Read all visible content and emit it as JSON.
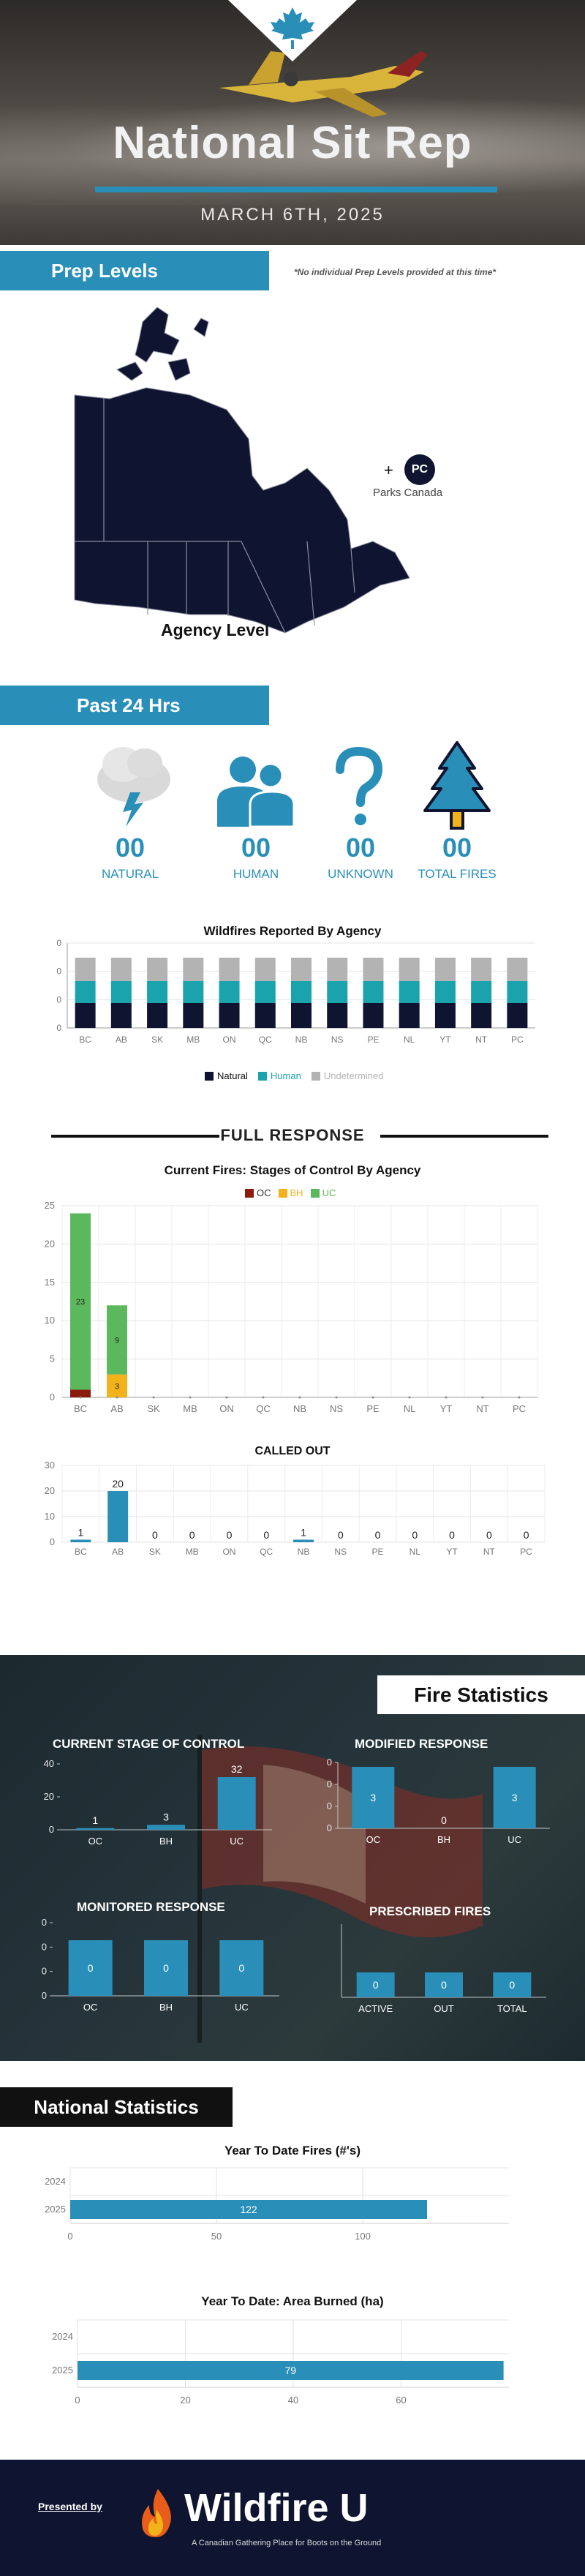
{
  "hero": {
    "title": "National Sit Rep",
    "date": "MARCH 6TH, 2025"
  },
  "prep": {
    "tab": "Prep Levels",
    "note": "*No individual Prep Levels provided at this time*",
    "pc_badge": "PC",
    "pc_plus": "+",
    "pc_label": "Parks Canada",
    "map_label": "Agency Level"
  },
  "past24": {
    "tab": "Past 24 Hrs",
    "stats": [
      {
        "icon": "storm-cloud-icon",
        "value": "00",
        "label": "NATURAL"
      },
      {
        "icon": "people-icon",
        "value": "00",
        "label": "HUMAN"
      },
      {
        "icon": "question-mark-icon",
        "value": "00",
        "label": "UNKNOWN"
      },
      {
        "icon": "tree-icon",
        "value": "00",
        "label": "TOTAL FIRES"
      }
    ]
  },
  "colors": {
    "accent": "#2a8fb8",
    "natural": "#0f1530",
    "human": "#1aa3ad",
    "undetermined": "#b3b3b3",
    "oc": "#8b1a0f",
    "bh": "#f2b21b",
    "uc": "#5cb85c"
  },
  "full_response": {
    "heading": "FULL RESPONSE"
  },
  "fire_stats": {
    "tab": "Fire Statistics"
  },
  "national_stats": {
    "tab": "National Statistics"
  },
  "footer": {
    "presented_by": "Presented by",
    "brand": "Wildfire U",
    "tagline": "A Canadian Gathering Place for Boots on the Ground"
  },
  "chart_data": [
    {
      "id": "reported",
      "type": "bar",
      "title": "Wildfires Reported By Agency",
      "categories": [
        "BC",
        "AB",
        "SK",
        "MB",
        "ON",
        "QC",
        "NB",
        "NS",
        "PE",
        "NL",
        "YT",
        "NT",
        "PC"
      ],
      "series": [
        {
          "name": "Natural",
          "values": [
            0,
            0,
            0,
            0,
            0,
            0,
            0,
            0,
            0,
            0,
            0,
            0,
            0
          ]
        },
        {
          "name": "Human",
          "values": [
            0,
            0,
            0,
            0,
            0,
            0,
            0,
            0,
            0,
            0,
            0,
            0,
            0
          ]
        },
        {
          "name": "Undetermined",
          "values": [
            0,
            0,
            0,
            0,
            0,
            0,
            0,
            0,
            0,
            0,
            0,
            0,
            0
          ]
        }
      ],
      "y_ticks": [
        "0",
        "0",
        "0",
        "0"
      ],
      "legend": "bottom"
    },
    {
      "id": "stages",
      "type": "bar",
      "title": "Current Fires: Stages of Control By Agency",
      "categories": [
        "BC",
        "AB",
        "SK",
        "MB",
        "ON",
        "QC",
        "NB",
        "NS",
        "PE",
        "NL",
        "YT",
        "NT",
        "PC"
      ],
      "series": [
        {
          "name": "OC",
          "values": [
            1,
            0,
            0,
            0,
            0,
            0,
            0,
            0,
            0,
            0,
            0,
            0,
            0
          ]
        },
        {
          "name": "BH",
          "values": [
            0,
            3,
            0,
            0,
            0,
            0,
            0,
            0,
            0,
            0,
            0,
            0,
            0
          ]
        },
        {
          "name": "UC",
          "values": [
            23,
            9,
            0,
            0,
            0,
            0,
            0,
            0,
            0,
            0,
            0,
            0,
            0
          ]
        }
      ],
      "segment_labels": [
        {
          "cat": "BC",
          "series": "UC",
          "text": "23"
        },
        {
          "cat": "AB",
          "series": "UC",
          "text": "9"
        },
        {
          "cat": "AB",
          "series": "BH",
          "text": "3"
        }
      ],
      "ylim": [
        0,
        25
      ],
      "y_ticks": [
        0,
        5,
        10,
        15,
        20,
        25
      ],
      "legend": "top"
    },
    {
      "id": "calledout",
      "type": "bar",
      "title": "CALLED OUT",
      "categories": [
        "BC",
        "AB",
        "SK",
        "MB",
        "ON",
        "QC",
        "NB",
        "NS",
        "PE",
        "NL",
        "YT",
        "NT",
        "PC"
      ],
      "values": [
        1,
        20,
        0,
        0,
        0,
        0,
        1,
        0,
        0,
        0,
        0,
        0,
        0
      ],
      "ylim": [
        0,
        30
      ],
      "y_ticks": [
        0,
        10,
        20,
        30
      ]
    },
    {
      "id": "current_stage",
      "type": "bar",
      "title": "CURRENT STAGE OF CONTROL",
      "categories": [
        "OC",
        "BH",
        "UC"
      ],
      "values": [
        1,
        3,
        32
      ],
      "ylim": [
        0,
        40
      ],
      "y_ticks": [
        0,
        20,
        40
      ]
    },
    {
      "id": "modified",
      "type": "bar",
      "title": "MODIFIED RESPONSE",
      "categories": [
        "OC",
        "BH",
        "UC"
      ],
      "values": [
        3,
        0,
        3
      ],
      "y_ticks": [
        "0",
        "0",
        "0",
        "0"
      ]
    },
    {
      "id": "monitored",
      "type": "bar",
      "title": "MONITORED RESPONSE",
      "categories": [
        "OC",
        "BH",
        "UC"
      ],
      "values": [
        0,
        0,
        0
      ],
      "y_ticks": [
        "0",
        "0",
        "0",
        "0"
      ]
    },
    {
      "id": "prescribed",
      "type": "bar",
      "title": "PRESCRIBED FIRES",
      "categories": [
        "ACTIVE",
        "OUT",
        "TOTAL"
      ],
      "values": [
        0,
        0,
        0
      ]
    },
    {
      "id": "ytd_fires",
      "type": "bar",
      "orientation": "horizontal",
      "title": "Year To Date Fires (#'s)",
      "categories": [
        "2024",
        "2025"
      ],
      "values": [
        0,
        122
      ],
      "xlim": [
        0,
        150
      ],
      "x_ticks": [
        0,
        50,
        100
      ]
    },
    {
      "id": "ytd_area",
      "type": "bar",
      "orientation": "horizontal",
      "title": "Year To Date: Area Burned (ha)",
      "categories": [
        "2024",
        "2025"
      ],
      "values": [
        0,
        79
      ],
      "xlim": [
        0,
        80
      ],
      "x_ticks": [
        0,
        20,
        40,
        60
      ]
    }
  ]
}
